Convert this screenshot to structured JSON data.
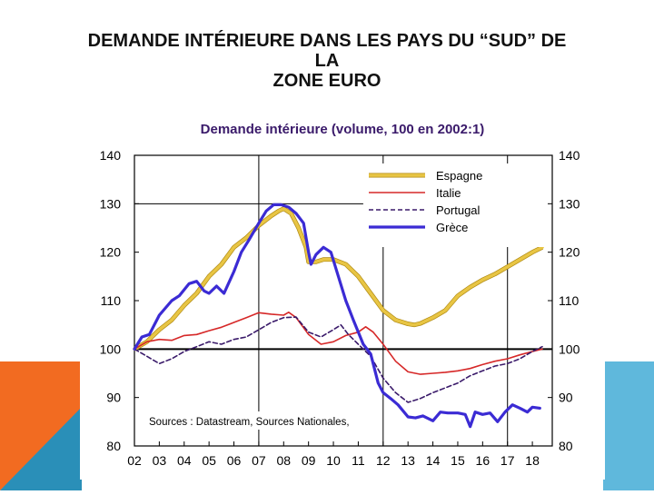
{
  "slide": {
    "title_lines": [
      "DEMANDE INTÉRIEURE DANS LES PAYS DU “SUD” DE",
      "LA",
      "ZONE EURO"
    ],
    "colors": {
      "orange": "#f26b21",
      "teal": "#2a8fb8",
      "light_blue": "#5fb8dc"
    }
  },
  "chart_data": {
    "type": "line",
    "title": "Demande intérieure (volume, 100 en 2002:1)",
    "x_ticks": [
      "02",
      "03",
      "04",
      "05",
      "06",
      "07",
      "08",
      "09",
      "10",
      "11",
      "12",
      "13",
      "14",
      "15",
      "16",
      "17",
      "18"
    ],
    "y_ticks": [
      80,
      90,
      100,
      110,
      120,
      130,
      140
    ],
    "ylim": [
      80,
      140
    ],
    "xlim": [
      2002,
      2018.8
    ],
    "source_note": "Sources : Datastream, Sources Nationales,",
    "legend_position": "top-right",
    "grid": false,
    "series": [
      {
        "name": "Espagne",
        "color": "#e8c544",
        "style": "thick-solid",
        "x": [
          2002.0,
          2002.5,
          2003.0,
          2003.5,
          2004.0,
          2004.5,
          2005.0,
          2005.5,
          2006.0,
          2006.5,
          2007.0,
          2007.5,
          2007.8,
          2008.0,
          2008.3,
          2008.6,
          2008.9,
          2009.0,
          2009.3,
          2009.6,
          2010.0,
          2010.5,
          2011.0,
          2011.5,
          2012.0,
          2012.5,
          2013.0,
          2013.25,
          2013.5,
          2014.0,
          2014.5,
          2015.0,
          2015.5,
          2016.0,
          2016.5,
          2017.0,
          2017.5,
          2018.0,
          2018.4
        ],
        "values": [
          100,
          101.5,
          104,
          106,
          109,
          111.5,
          115,
          117.5,
          121,
          123,
          125.5,
          127.5,
          128.5,
          129,
          128,
          125,
          121,
          118,
          118,
          118.5,
          118.5,
          117.5,
          115,
          111.5,
          108,
          106,
          105.2,
          105,
          105.3,
          106.5,
          108,
          111,
          112.8,
          114.3,
          115.5,
          117,
          118.5,
          120,
          121
        ]
      },
      {
        "name": "Italie",
        "color": "#d62828",
        "style": "solid",
        "x": [
          2002.0,
          2002.5,
          2003.0,
          2003.5,
          2004.0,
          2004.5,
          2005.0,
          2005.5,
          2006.0,
          2006.5,
          2007.0,
          2007.5,
          2008.0,
          2008.2,
          2008.5,
          2009.0,
          2009.5,
          2010.0,
          2010.5,
          2011.0,
          2011.3,
          2011.6,
          2012.0,
          2012.5,
          2013.0,
          2013.5,
          2014.0,
          2014.5,
          2015.0,
          2015.5,
          2016.0,
          2016.5,
          2017.0,
          2017.5,
          2018.0,
          2018.4
        ],
        "values": [
          100,
          101.5,
          102,
          101.8,
          102.8,
          103,
          103.8,
          104.5,
          105.5,
          106.5,
          107.5,
          107.2,
          107,
          107.6,
          106.5,
          103,
          101,
          101.5,
          102.8,
          103.5,
          104.6,
          103.5,
          101,
          97.5,
          95.3,
          94.8,
          95,
          95.2,
          95.5,
          96,
          96.8,
          97.5,
          98,
          98.8,
          99.5,
          100
        ]
      },
      {
        "name": "Portugal",
        "color": "#3a1a6a",
        "style": "dashed",
        "x": [
          2002.0,
          2002.5,
          2003.0,
          2003.5,
          2004.0,
          2004.5,
          2005.0,
          2005.5,
          2006.0,
          2006.5,
          2007.0,
          2007.5,
          2008.0,
          2008.5,
          2009.0,
          2009.5,
          2010.0,
          2010.3,
          2010.6,
          2011.0,
          2011.5,
          2012.0,
          2012.5,
          2013.0,
          2013.5,
          2014.0,
          2014.5,
          2015.0,
          2015.5,
          2016.0,
          2016.5,
          2017.0,
          2017.5,
          2018.0,
          2018.4
        ],
        "values": [
          100,
          98.5,
          97,
          98,
          99.5,
          100.5,
          101.5,
          101,
          102,
          102.5,
          104,
          105.5,
          106.5,
          106.6,
          103.5,
          102.5,
          104,
          105,
          103,
          101,
          98.5,
          94,
          91,
          89,
          89.8,
          91,
          92,
          93,
          94.5,
          95.5,
          96.5,
          97,
          98,
          99.5,
          100.5
        ]
      },
      {
        "name": "Grèce",
        "color": "#3b2bd4",
        "style": "thick-solid",
        "x": [
          2002.0,
          2002.3,
          2002.6,
          2003.0,
          2003.5,
          2003.8,
          2004.2,
          2004.5,
          2004.8,
          2005.0,
          2005.3,
          2005.6,
          2006.0,
          2006.3,
          2006.6,
          2007.0,
          2007.3,
          2007.6,
          2007.9,
          2008.2,
          2008.5,
          2008.8,
          2009.0,
          2009.1,
          2009.3,
          2009.6,
          2009.9,
          2010.2,
          2010.5,
          2010.8,
          2011.2,
          2011.5,
          2011.8,
          2012.0,
          2012.3,
          2012.6,
          2013.0,
          2013.3,
          2013.6,
          2014.0,
          2014.3,
          2014.6,
          2015.0,
          2015.3,
          2015.5,
          2015.7,
          2016.0,
          2016.3,
          2016.6,
          2016.9,
          2017.2,
          2017.5,
          2017.8,
          2018.0,
          2018.3
        ],
        "values": [
          100,
          102.5,
          103,
          107,
          110,
          111,
          113.5,
          114,
          112,
          111.5,
          113,
          111.5,
          116,
          120,
          122.5,
          126,
          128.5,
          129.8,
          129.8,
          129.3,
          128,
          126,
          120,
          117.5,
          119.5,
          121,
          120,
          115,
          110,
          106,
          101,
          99,
          93,
          91,
          89.8,
          88.5,
          86,
          85.8,
          86.2,
          85.2,
          87,
          86.8,
          86.8,
          86.5,
          84,
          87,
          86.5,
          86.8,
          85,
          87,
          88.5,
          87.8,
          87,
          88,
          87.8
        ]
      }
    ]
  }
}
